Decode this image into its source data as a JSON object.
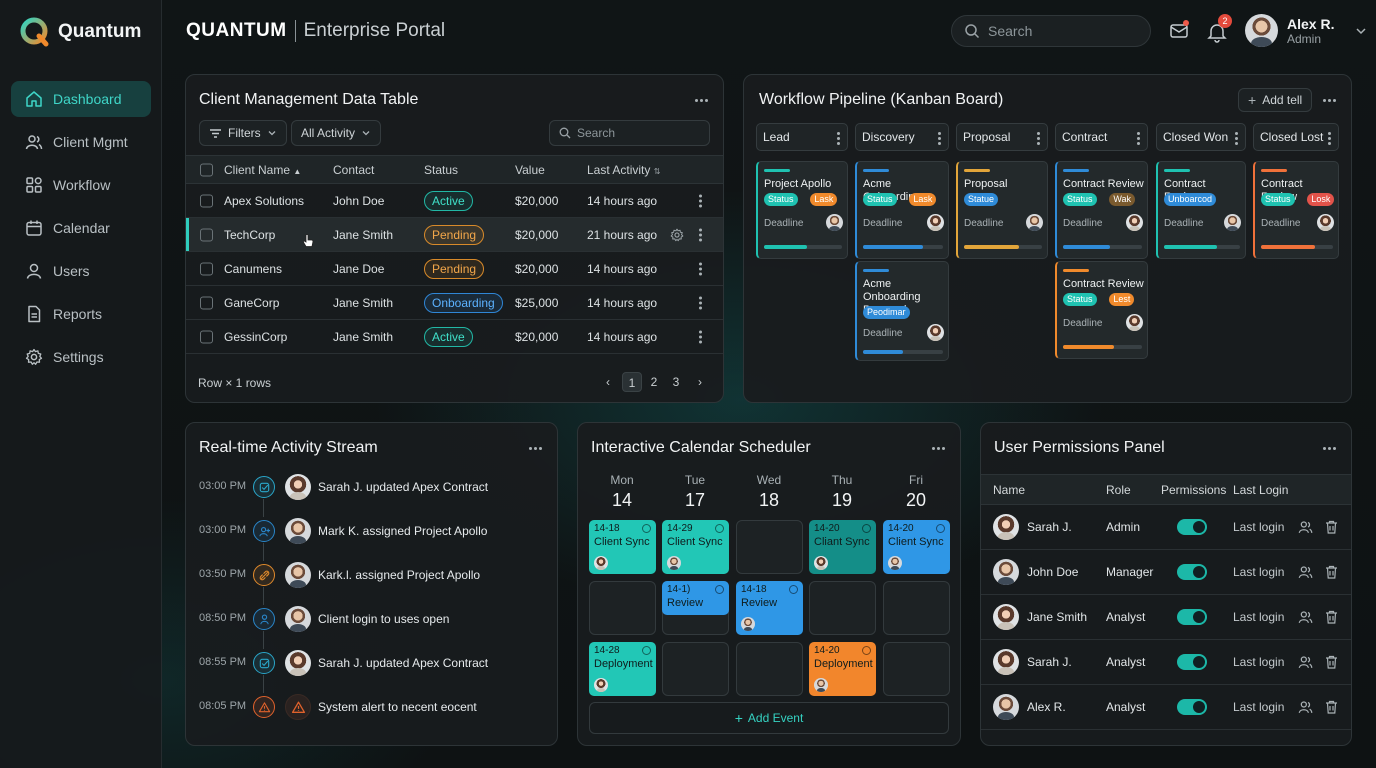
{
  "brand": {
    "name": "Quantum"
  },
  "nav": [
    {
      "label": "Dashboard",
      "icon": "home-icon",
      "active": true
    },
    {
      "label": "Client Mgmt",
      "icon": "users-icon"
    },
    {
      "label": "Workflow",
      "icon": "grid-icon"
    },
    {
      "label": "Calendar",
      "icon": "calendar-icon"
    },
    {
      "label": "Users",
      "icon": "user-icon"
    },
    {
      "label": "Reports",
      "icon": "document-icon"
    },
    {
      "label": "Settings",
      "icon": "gear-icon"
    }
  ],
  "header": {
    "brand": "QUANTUM",
    "subtitle": "Enterprise Portal",
    "search_placeholder": "Search",
    "notification_count": "2",
    "user_name": "Alex R.",
    "user_role": "Admin"
  },
  "clients": {
    "title": "Client Management Data Table",
    "filters_label": "Filters",
    "activity_filter": "All Activity",
    "search_placeholder": "Search",
    "columns": [
      "Client Name",
      "Contact",
      "Status",
      "Value",
      "Last Activity"
    ],
    "rows": [
      {
        "name": "Apex Solutions",
        "contact": "John Doe",
        "status": "Active",
        "status_kind": "active",
        "value": "$20,000",
        "activity": "14 hours ago"
      },
      {
        "name": "TechCorp",
        "contact": "Jane Smith",
        "status": "Pending",
        "status_kind": "pending",
        "value": "$20,000",
        "activity": "21 hours ago",
        "selected": true
      },
      {
        "name": "Canumens",
        "contact": "Jane Doe",
        "status": "Pending",
        "status_kind": "pending",
        "value": "$20,000",
        "activity": "14 hours ago"
      },
      {
        "name": "GaneCorp",
        "contact": "Jane Smith",
        "status": "Onboarding",
        "status_kind": "onb",
        "value": "$25,000",
        "activity": "14 hours ago"
      },
      {
        "name": "GessinCorp",
        "contact": "Jane Smith",
        "status": "Active",
        "status_kind": "active",
        "value": "$20,000",
        "activity": "14 hours ago"
      }
    ],
    "footer": "Row × 1 rows",
    "pages": [
      "1",
      "2",
      "3"
    ]
  },
  "kanban": {
    "title": "Workflow Pipeline (Kanban Board)",
    "add_label": "Add tell",
    "columns": [
      {
        "name": "Lead",
        "cards": [
          {
            "title": "Project Apollo",
            "tags": [
              {
                "t": "Status",
                "c": "#1fc2b1"
              },
              {
                "t": "Lask",
                "c": "#f08a2c"
              }
            ],
            "deadline": "Deadline",
            "accent": "#1fc2b1",
            "progress": 0.55
          }
        ]
      },
      {
        "name": "Discovery",
        "cards": [
          {
            "title": "Acme Onboarding",
            "tags": [
              {
                "t": "Status",
                "c": "#1fc2b1"
              },
              {
                "t": "Lask",
                "c": "#f08a2c"
              }
            ],
            "deadline": "Deadline",
            "accent": "#2f8bd8",
            "progress": 0.75
          },
          {
            "title": "Acme Onboarding Proposal",
            "tags": [
              {
                "t": "Peodimar",
                "c": "#2f8bd8"
              }
            ],
            "deadline": "Deadline",
            "accent": "#2f8bd8",
            "progress": 0.5
          }
        ]
      },
      {
        "name": "Proposal",
        "cards": [
          {
            "title": "Proposal",
            "tags": [
              {
                "t": "Statue",
                "c": "#2f8bd8"
              }
            ],
            "deadline": "Deadline",
            "accent": "#e2a53a",
            "progress": 0.7
          }
        ]
      },
      {
        "name": "Contract",
        "cards": [
          {
            "title": "Contract Review",
            "tags": [
              {
                "t": "Status",
                "c": "#1fc2b1"
              },
              {
                "t": "Wak",
                "c": "#7a5a2e"
              }
            ],
            "deadline": "Deadline",
            "accent": "#2f8bd8",
            "progress": 0.6
          },
          {
            "title": "Contract Review",
            "tags": [
              {
                "t": "Status",
                "c": "#1fc2b1"
              },
              {
                "t": "Lest",
                "c": "#f08a2c"
              }
            ],
            "deadline": "Deadline",
            "accent": "#f08a2c",
            "progress": 0.65
          }
        ]
      },
      {
        "name": "Closed Won",
        "cards": [
          {
            "title": "Contract Review",
            "tags": [
              {
                "t": "Unboarcod",
                "c": "#2f8bd8"
              }
            ],
            "deadline": "Deadline",
            "accent": "#1fc2b1",
            "progress": 0.7
          }
        ]
      },
      {
        "name": "Closed Lost",
        "cards": [
          {
            "title": "Contract Review",
            "tags": [
              {
                "t": "Status",
                "c": "#1fc2b1"
              },
              {
                "t": "Losk",
                "c": "#e2534a"
              }
            ],
            "deadline": "Deadline",
            "accent": "#f0713a",
            "progress": 0.75
          }
        ]
      }
    ]
  },
  "activity": {
    "title": "Real-time Activity Stream",
    "items": [
      {
        "time": "03:00 PM",
        "text": "Sarah J. updated Apex Contract",
        "icon": "check-icon",
        "color": "#2aa6c9",
        "female": true
      },
      {
        "time": "03:00 PM",
        "text": "Mark K. assigned Project Apollo",
        "icon": "user-plus-icon",
        "color": "#2a86c9",
        "female": false
      },
      {
        "time": "03:50 PM",
        "text": "Kark.l. assigned Project Apollo",
        "icon": "link-icon",
        "color": "#e08a2c",
        "female": false
      },
      {
        "time": "08:50 PM",
        "text": "Client login to uses open",
        "icon": "person-icon",
        "color": "#2a86c9",
        "female": false
      },
      {
        "time": "08:55 PM",
        "text": "Sarah J. updated Apex Contract",
        "icon": "check-icon",
        "color": "#2aa6c9",
        "female": true
      },
      {
        "time": "08:05 PM",
        "text": "System alert to necent eocent",
        "icon": "alert-icon",
        "color": "#e0622c",
        "female": false
      }
    ]
  },
  "calendar": {
    "title": "Interactive Calendar Scheduler",
    "days": [
      {
        "name": "Mon",
        "date": "14"
      },
      {
        "name": "Tue",
        "date": "17"
      },
      {
        "name": "Wed",
        "date": "18"
      },
      {
        "name": "Thu",
        "date": "19"
      },
      {
        "name": "Fri",
        "date": "20"
      }
    ],
    "events": [
      {
        "day": 0,
        "slot": 0,
        "time": "14-18",
        "name": "Client Sync",
        "color": "#22c7b6",
        "half": false
      },
      {
        "day": 1,
        "slot": 0,
        "time": "14-29",
        "name": "Client Sync",
        "color": "#22c7b6",
        "half": false
      },
      {
        "day": 3,
        "slot": 0,
        "time": "14-20",
        "name": "Cliant Sync",
        "color": "#148e88",
        "half": false
      },
      {
        "day": 4,
        "slot": 0,
        "time": "14-20",
        "name": "Client Sync",
        "color": "#2f97e6",
        "half": false
      },
      {
        "day": 1,
        "slot": 1,
        "time": "14-1)",
        "name": "Review",
        "color": "#2f97e6",
        "half": true
      },
      {
        "day": 2,
        "slot": 1,
        "time": "14-18",
        "name": "Review",
        "color": "#2f97e6",
        "half": false
      },
      {
        "day": 0,
        "slot": 2,
        "time": "14-28",
        "name": "Deployment",
        "color": "#22c7b6",
        "half": false
      },
      {
        "day": 3,
        "slot": 2,
        "time": "14-20",
        "name": "Deployment",
        "color": "#f2862c",
        "half": false
      }
    ],
    "add_label": "Add Event"
  },
  "permissions": {
    "title": "User Permissions Panel",
    "columns": [
      "Name",
      "Role",
      "Permissions",
      "Last Login"
    ],
    "rows": [
      {
        "name": "Sarah J.",
        "role": "Admin",
        "login": "Last login",
        "female": true
      },
      {
        "name": "John Doe",
        "role": "Manager",
        "login": "Last login",
        "female": false
      },
      {
        "name": "Jane Smith",
        "role": "Analyst",
        "login": "Last login",
        "female": true
      },
      {
        "name": "Sarah J.",
        "role": "Analyst",
        "login": "Last login",
        "female": true
      },
      {
        "name": "Alex R.",
        "role": "Analyst",
        "login": "Last login",
        "female": false
      }
    ]
  }
}
